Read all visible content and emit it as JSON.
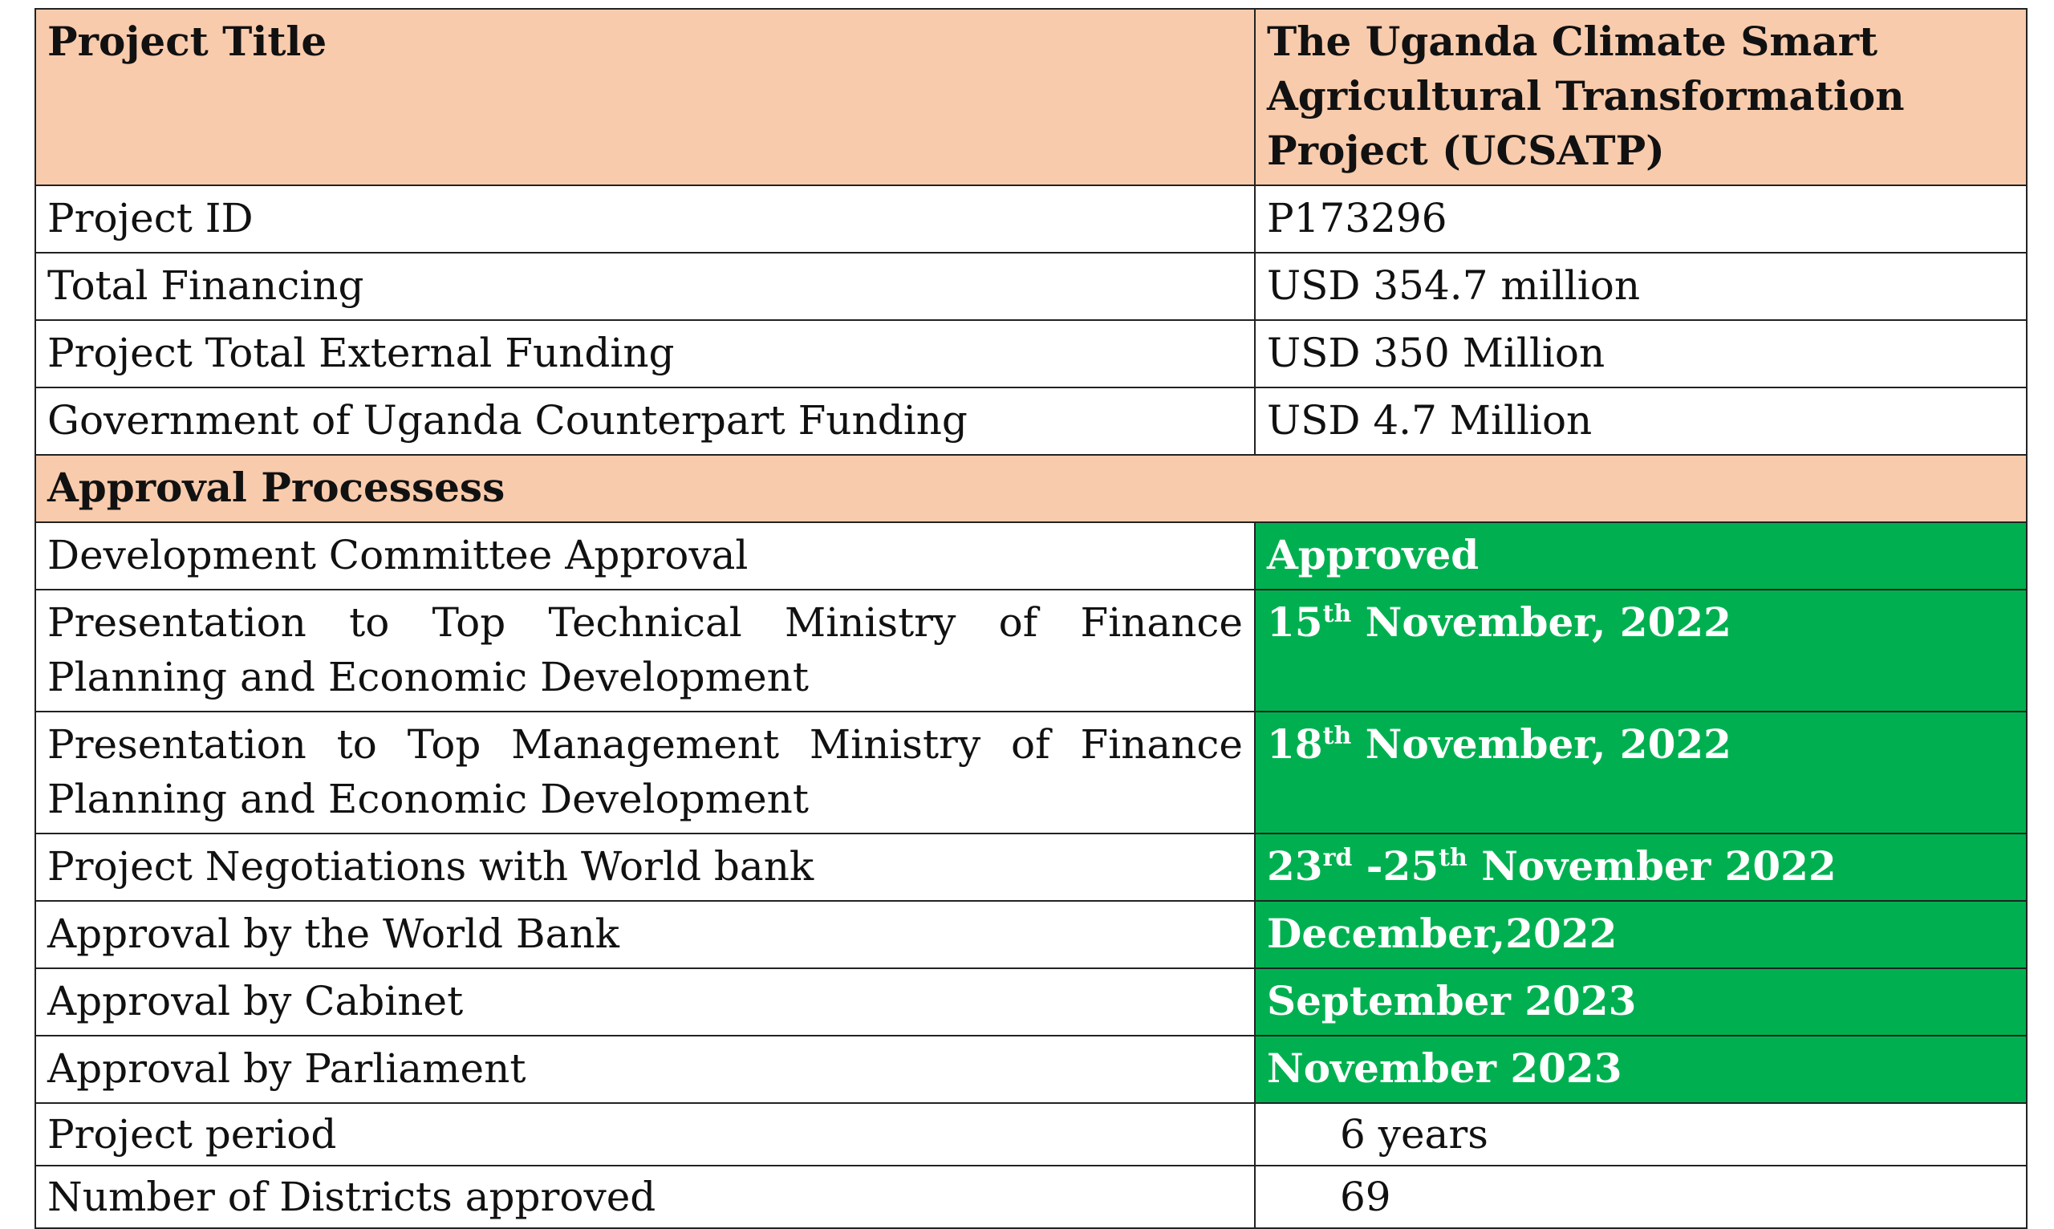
{
  "header": {
    "title_label": "Project Title",
    "title_value": "The Uganda Climate Smart Agricultural Transformation Project (UCSATP)"
  },
  "details": [
    {
      "label": "Project ID",
      "value": "P173296"
    },
    {
      "label": "Total Financing",
      "value": "USD 354.7 million"
    },
    {
      "label": "Project Total External Funding",
      "value": "USD 350 Million"
    },
    {
      "label": "Government of Uganda Counterpart Funding",
      "value": "USD 4.7 Million"
    }
  ],
  "approval_section": {
    "heading": "Approval Processess",
    "rows": [
      {
        "label": "Development Committee Approval",
        "value": "Approved"
      },
      {
        "label": "Presentation to Top Technical Ministry of Finance Planning and Economic Development",
        "day": "15",
        "sup": "th",
        "rest": " November, 2022"
      },
      {
        "label": "Presentation to Top Management Ministry of Finance Planning and Economic Development",
        "day": "18",
        "sup": "th",
        "rest": " November, 2022"
      },
      {
        "label": "Project Negotiations with World bank",
        "day": "23",
        "sup": "rd",
        "mid": " -25",
        "sup2": "th",
        "rest": " November 2022"
      },
      {
        "label": "Approval by the World Bank",
        "value": "December,2022"
      },
      {
        "label": "Approval by Cabinet",
        "value": "September 2023"
      },
      {
        "label": "Approval by Parliament",
        "value": "November 2023"
      }
    ]
  },
  "footer_rows": [
    {
      "label": "Project period",
      "value": "6 years"
    },
    {
      "label": "Number of Districts approved",
      "value": "69"
    }
  ],
  "colors": {
    "header_fill": "#f8cbad",
    "status_fill": "#00b050",
    "status_text": "#ffffff",
    "border": "#222222"
  }
}
